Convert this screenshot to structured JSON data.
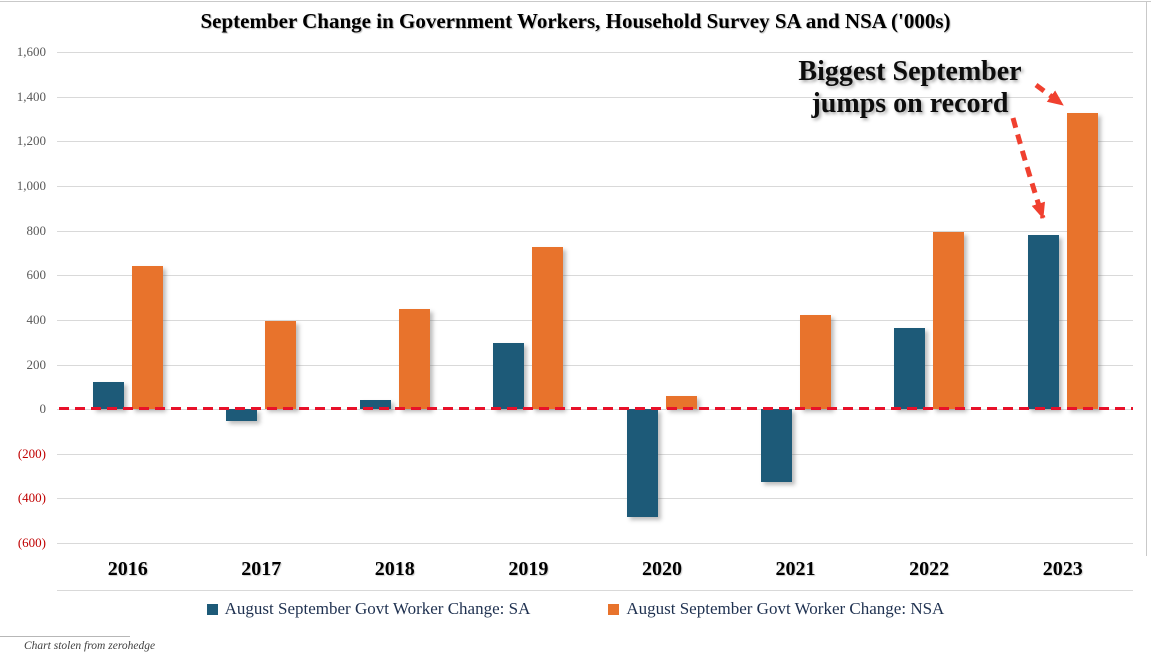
{
  "chart_data": {
    "type": "bar",
    "title": "September Change in Government Workers, Household Survey SA and NSA ('000s)",
    "categories": [
      "2016",
      "2017",
      "2018",
      "2019",
      "2020",
      "2021",
      "2022",
      "2023"
    ],
    "series": [
      {
        "name": "August September Govt Worker Change: SA",
        "color": "#1D5A78",
        "values": [
          120,
          -55,
          40,
          295,
          -485,
          -325,
          365,
          780
        ]
      },
      {
        "name": "August September Govt Worker Change: NSA",
        "color": "#E8732C",
        "values": [
          640,
          395,
          450,
          725,
          60,
          420,
          795,
          1325
        ]
      }
    ],
    "xlabel": "",
    "ylabel": "",
    "ylim": [
      -600,
      1600
    ],
    "ytick_step": 200,
    "ytick_labels": [
      "1,600",
      "1,400",
      "1,200",
      "1,000",
      "800",
      "600",
      "400",
      "200",
      "0",
      "(200)",
      "(400)",
      "(600)"
    ],
    "grid": "horizontal",
    "legend_position": "bottom",
    "zero_line_style": "red-dashed"
  },
  "annotation": {
    "line1": "Biggest September",
    "line2": "jumps on record"
  },
  "footer": {
    "credit": "Chart stolen from zerohedge"
  },
  "colors": {
    "background": "#FFFFFF",
    "grid": "#D9D9D9",
    "border": "#C9C9C9",
    "tick": "#595959",
    "tick_negative": "#C00000",
    "zero_line": "#E8112A",
    "arrow": "#F0402F",
    "legend_text": "#1F3150"
  }
}
